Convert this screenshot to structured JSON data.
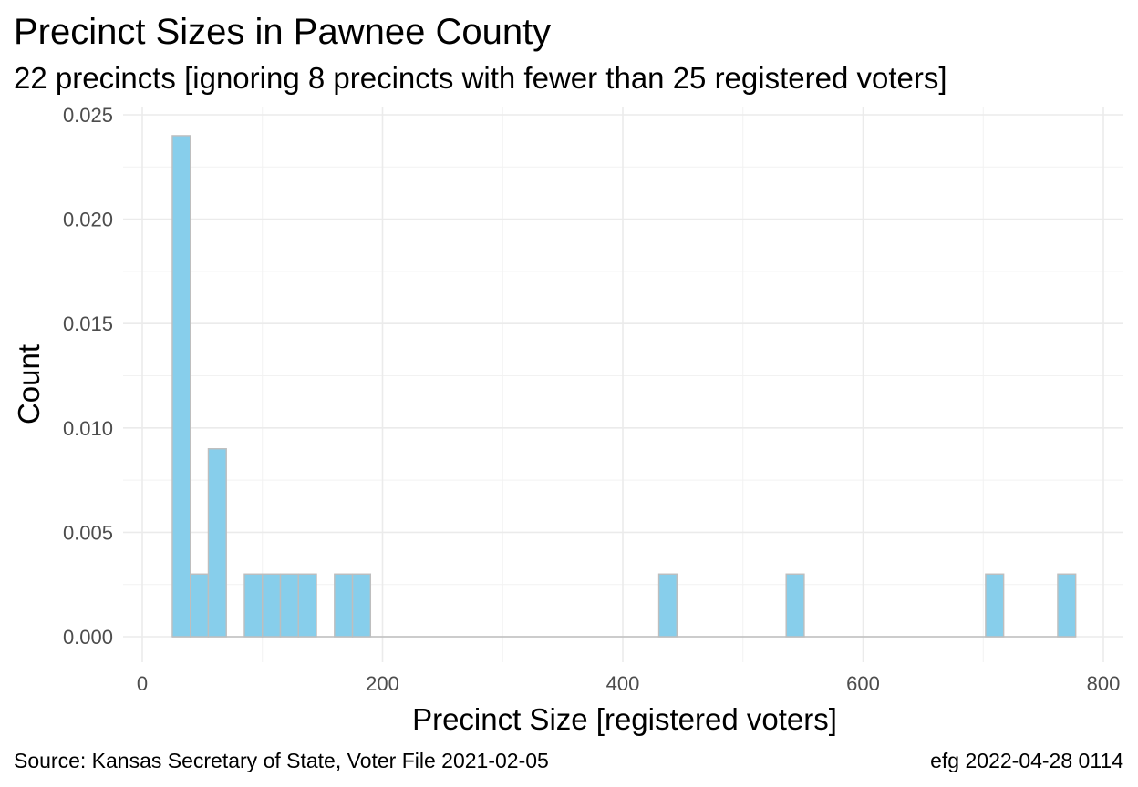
{
  "chart_data": {
    "type": "bar",
    "title": "Precinct Sizes in Pawnee County",
    "subtitle": "22 precincts [ignoring 8 precincts with fewer than 25 registered voters]",
    "xlabel": "Precinct Size [registered voters]",
    "ylabel": "Count",
    "xlim": [
      0,
      800
    ],
    "ylim": [
      0,
      0.025
    ],
    "x_ticks": [
      0,
      200,
      400,
      600,
      800
    ],
    "x_tick_labels": [
      "0",
      "200",
      "400",
      "600",
      "800"
    ],
    "y_ticks": [
      0,
      0.005,
      0.01,
      0.015,
      0.02,
      0.025
    ],
    "y_tick_labels": [
      "0.000",
      "0.005",
      "0.010",
      "0.015",
      "0.020",
      "0.025"
    ],
    "bin_width": 15,
    "bins": [
      {
        "x_start": 25,
        "x_end": 40,
        "value": 0.024
      },
      {
        "x_start": 40,
        "x_end": 55,
        "value": 0.003
      },
      {
        "x_start": 55,
        "x_end": 70,
        "value": 0.009
      },
      {
        "x_start": 85,
        "x_end": 100,
        "value": 0.003
      },
      {
        "x_start": 100,
        "x_end": 115,
        "value": 0.003
      },
      {
        "x_start": 115,
        "x_end": 130,
        "value": 0.003
      },
      {
        "x_start": 130,
        "x_end": 145,
        "value": 0.003
      },
      {
        "x_start": 160,
        "x_end": 175,
        "value": 0.003
      },
      {
        "x_start": 175,
        "x_end": 190,
        "value": 0.003
      },
      {
        "x_start": 430,
        "x_end": 445,
        "value": 0.003
      },
      {
        "x_start": 536,
        "x_end": 551,
        "value": 0.003
      },
      {
        "x_start": 702,
        "x_end": 717,
        "value": 0.003
      },
      {
        "x_start": 762,
        "x_end": 777,
        "value": 0.003
      }
    ],
    "baseline": [
      25,
      777
    ],
    "grid": true,
    "legend": "none",
    "bar_fill": "#87ceeb",
    "bar_outline": "#bebebe"
  },
  "caption": {
    "source": "Source:  Kansas Secretary of State, Voter File  2021-02-05",
    "stamp": "efg 2022-04-28 0114"
  },
  "colors": {
    "grid_major": "#ebebeb",
    "grid_minor": "#f2f2f2",
    "tick_text": "#4d4d4d",
    "text": "#000000"
  }
}
